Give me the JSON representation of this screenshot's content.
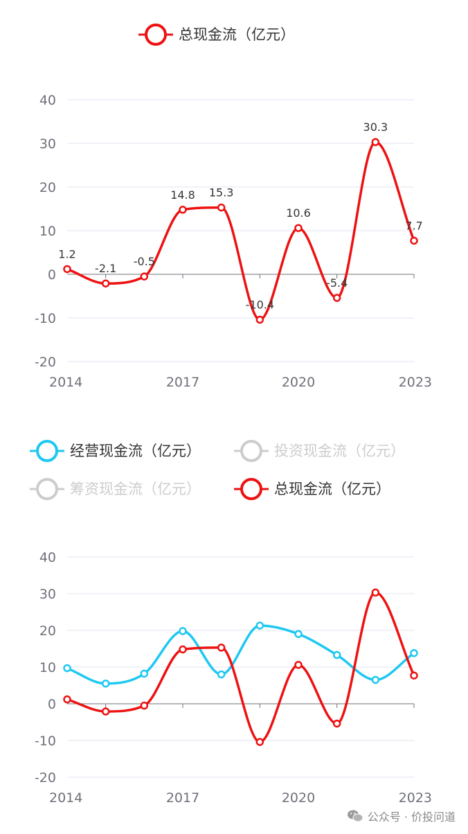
{
  "chart_data": [
    {
      "type": "line",
      "title": "",
      "xlabel": "",
      "ylabel": "",
      "x": [
        2014,
        2015,
        2016,
        2017,
        2018,
        2019,
        2020,
        2021,
        2022,
        2023
      ],
      "x_tick_labels": [
        "2014",
        "2017",
        "2020",
        "2023"
      ],
      "y_tick_labels": [
        "40",
        "30",
        "20",
        "10",
        "0",
        "-10",
        "-20"
      ],
      "ylim": [
        -20,
        40
      ],
      "grid": true,
      "legend": [
        {
          "name": "总现金流（亿元）",
          "color": "#ee1111",
          "active": true
        }
      ],
      "series": [
        {
          "name": "总现金流（亿元）",
          "color": "#ee1111",
          "values": [
            1.2,
            -2.1,
            -0.5,
            14.8,
            15.3,
            -10.4,
            10.6,
            -5.4,
            30.3,
            7.7
          ],
          "labels": [
            "1.2",
            "-2.1",
            "-0.5",
            "14.8",
            "15.3",
            "-10.4",
            "10.6",
            "-5.4",
            "30.3",
            "7.7"
          ]
        }
      ]
    },
    {
      "type": "line",
      "title": "",
      "xlabel": "",
      "ylabel": "",
      "x": [
        2014,
        2015,
        2016,
        2017,
        2018,
        2019,
        2020,
        2021,
        2022,
        2023
      ],
      "x_tick_labels": [
        "2014",
        "2017",
        "2020",
        "2023"
      ],
      "y_tick_labels": [
        "40",
        "30",
        "20",
        "10",
        "0",
        "-10",
        "-20"
      ],
      "ylim": [
        -20,
        40
      ],
      "grid": true,
      "legend": [
        {
          "name": "经营现金流（亿元）",
          "color": "#1ec8f2",
          "active": true
        },
        {
          "name": "投资现金流（亿元）",
          "color": "#cccccc",
          "active": false
        },
        {
          "name": "筹资现金流（亿元）",
          "color": "#cccccc",
          "active": false
        },
        {
          "name": "总现金流（亿元）",
          "color": "#ee1111",
          "active": true
        }
      ],
      "series": [
        {
          "name": "经营现金流（亿元）",
          "color": "#1ec8f2",
          "values": [
            9.7,
            5.5,
            8.2,
            19.8,
            8.0,
            21.3,
            19.0,
            13.3,
            6.5,
            13.8
          ]
        },
        {
          "name": "总现金流（亿元）",
          "color": "#ee1111",
          "values": [
            1.2,
            -2.1,
            -0.5,
            14.8,
            15.3,
            -10.4,
            10.6,
            -5.4,
            30.3,
            7.7
          ]
        }
      ]
    }
  ],
  "watermark": {
    "text": "公众号 · 价投问道",
    "icon": "wechat-icon"
  }
}
